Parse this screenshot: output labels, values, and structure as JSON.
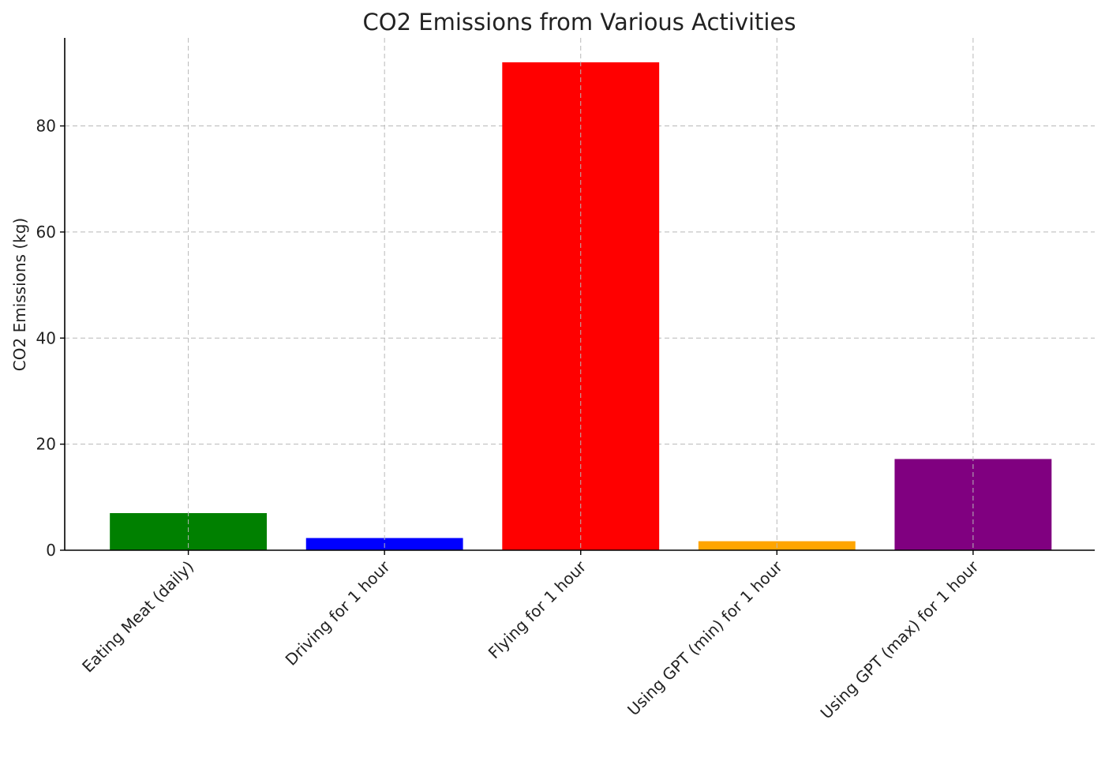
{
  "chart_data": {
    "type": "bar",
    "title": "CO2 Emissions from Various Activities",
    "xlabel": "",
    "ylabel": "CO2 Emissions (kg)",
    "categories": [
      "Eating Meat (daily)",
      "Driving for 1 hour",
      "Flying for 1 hour",
      "Using GPT (min) for 1 hour",
      "Using GPT (max) for 1 hour"
    ],
    "values": [
      7.0,
      2.3,
      92.0,
      1.7,
      17.2
    ],
    "colors": [
      "#008000",
      "#0000ff",
      "#ff0000",
      "#ffa500",
      "#800080"
    ],
    "ylim": [
      0,
      96.6
    ],
    "yticks": [
      0,
      20,
      40,
      60,
      80
    ],
    "grid": true,
    "x_tick_rotation_deg": 45
  }
}
